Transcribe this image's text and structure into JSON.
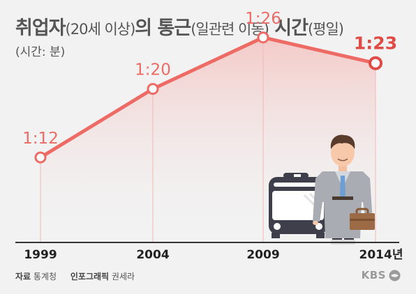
{
  "title": {
    "part1": "취업자",
    "part2": "(20세 이상)",
    "part3": "의 통근",
    "part4": "(일관련 이동)",
    "part5": " 시간",
    "part6": "(평일)"
  },
  "unit": "(시간: 분)",
  "chart_data": {
    "type": "line",
    "categories": [
      "1999",
      "2004",
      "2009",
      "2014년"
    ],
    "values": [
      72,
      80,
      86,
      83
    ],
    "labels": [
      "1:12",
      "1:20",
      "1:26",
      "1:23"
    ],
    "color": "#ee6b65",
    "highlight_color": "#e04b45",
    "grid": false
  },
  "footer": {
    "source_label": "자료",
    "source": "통계청",
    "graphic_label": "인포그래픽",
    "graphic": "권세라"
  },
  "logo": "KBS"
}
